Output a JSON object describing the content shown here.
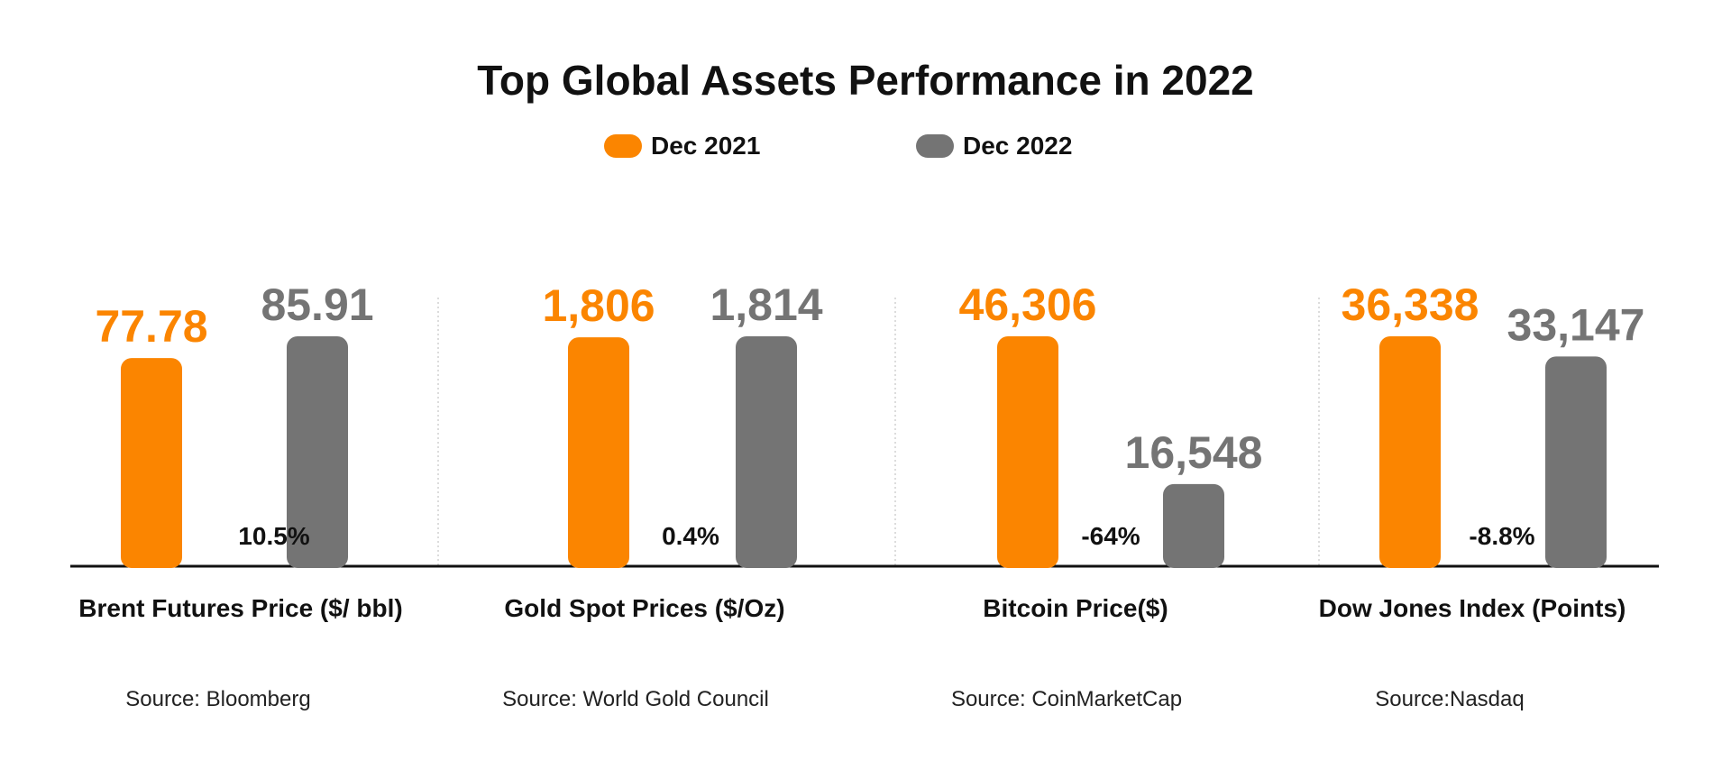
{
  "colors": {
    "dec2021": "#fb8500",
    "dec2022": "#747474"
  },
  "chart_data": {
    "type": "bar",
    "title": "Top Global Assets Performance in 2022",
    "legend": {
      "position": "top-center"
    },
    "series_names": [
      "Dec 2021",
      "Dec 2022"
    ],
    "panels": [
      {
        "category": "Brent Futures Price ($/ bbl)",
        "source": "Source: Bloomberg",
        "values": [
          77.78,
          85.91
        ],
        "labels": [
          "77.78",
          "85.91"
        ],
        "change": "10.5%"
      },
      {
        "category": "Gold Spot Prices ($/Oz)",
        "source": "Source: World Gold Council",
        "values": [
          1806,
          1814
        ],
        "labels": [
          "1,806",
          "1,814"
        ],
        "change": "0.4%"
      },
      {
        "category": "Bitcoin Price($)",
        "source": "Source: CoinMarketCap",
        "values": [
          46306,
          16548
        ],
        "labels": [
          "46,306",
          "16,548"
        ],
        "change": "-64%"
      },
      {
        "category": "Dow Jones Index (Points)",
        "source": "Source:Nasdaq",
        "values": [
          36338,
          33147
        ],
        "labels": [
          "36,338",
          "33,147"
        ],
        "change": "-8.8%"
      }
    ]
  }
}
